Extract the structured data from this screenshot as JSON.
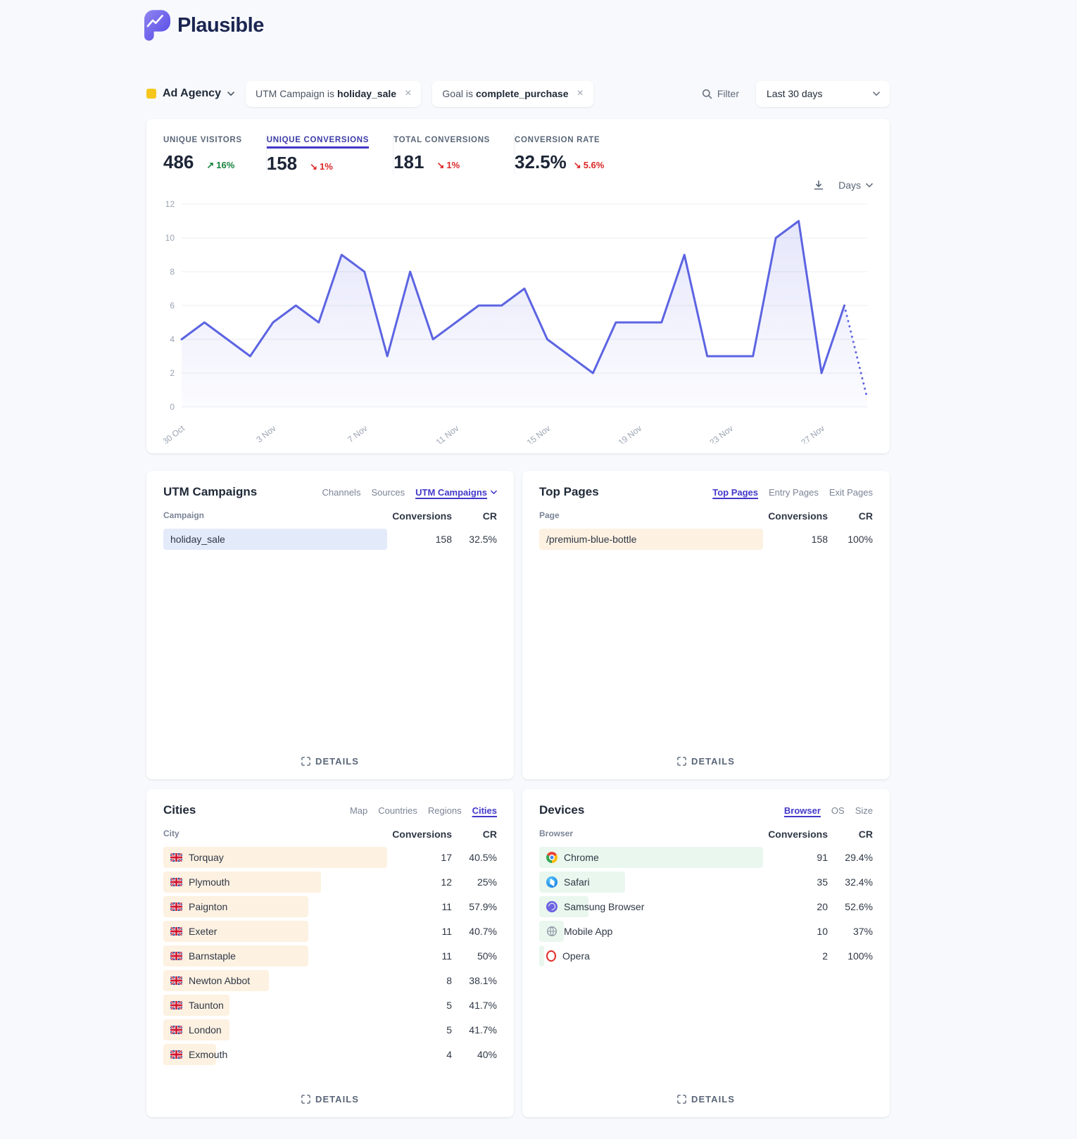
{
  "brand": {
    "name": "Plausible"
  },
  "filter_bar": {
    "site_name": "Ad Agency",
    "favicon_color": "#f6c61c",
    "filters": [
      {
        "prefix": "UTM Campaign is",
        "value": "holiday_sale",
        "close": "×"
      },
      {
        "prefix": "Goal is",
        "value": "complete_purchase",
        "close": "×"
      }
    ],
    "filter_label": "Filter",
    "date_range": "Last 30 days"
  },
  "stats": [
    {
      "label": "UNIQUE VISITORS",
      "value": "486",
      "arrow": "↗",
      "change": "16%",
      "direction": "up",
      "active": false
    },
    {
      "label": "UNIQUE CONVERSIONS",
      "value": "158",
      "arrow": "↘",
      "change": "1%",
      "direction": "down",
      "active": true
    },
    {
      "label": "TOTAL CONVERSIONS",
      "value": "181",
      "arrow": "↘",
      "change": "1%",
      "direction": "down",
      "active": false
    },
    {
      "label": "CONVERSION RATE",
      "value": "32.5%",
      "arrow": "↘",
      "change": "5.6%",
      "direction": "down",
      "active": false
    }
  ],
  "chart_controls": {
    "interval": "Days"
  },
  "chart_data": {
    "type": "line",
    "title": "Unique conversions per day (Last 30 days)",
    "x": [
      "30 Oct",
      "31 Oct",
      "1 Nov",
      "2 Nov",
      "3 Nov",
      "4 Nov",
      "5 Nov",
      "6 Nov",
      "7 Nov",
      "8 Nov",
      "9 Nov",
      "10 Nov",
      "11 Nov",
      "12 Nov",
      "13 Nov",
      "14 Nov",
      "15 Nov",
      "16 Nov",
      "17 Nov",
      "18 Nov",
      "19 Nov",
      "20 Nov",
      "21 Nov",
      "22 Nov",
      "23 Nov",
      "24 Nov",
      "25 Nov",
      "26 Nov",
      "27 Nov",
      "28 Nov",
      "29 Nov"
    ],
    "values": [
      4,
      5,
      4,
      3,
      5,
      6,
      5,
      9,
      8,
      3,
      8,
      4,
      5,
      6,
      6,
      7,
      4,
      3,
      2,
      5,
      5,
      5,
      9,
      3,
      3,
      3,
      10,
      11,
      2,
      6,
      0.5
    ],
    "dotted_from_index": 29,
    "ylim": [
      0,
      12
    ],
    "yticks": [
      0,
      2,
      4,
      6,
      8,
      10,
      12
    ],
    "xtick_indices": [
      0,
      4,
      8,
      12,
      16,
      20,
      24,
      28
    ],
    "xtick_labels": [
      "30 Oct",
      "3 Nov",
      "7 Nov",
      "11 Nov",
      "15 Nov",
      "19 Nov",
      "23 Nov",
      "27 Nov"
    ],
    "line_color": "#5c64e2",
    "grid": true,
    "legend": false
  },
  "panels": {
    "utm": {
      "title": "UTM Campaigns",
      "tabs": [
        "Channels",
        "Sources",
        "UTM Campaigns"
      ],
      "active_tab": "UTM Campaigns",
      "columns": [
        "Campaign",
        "Conversions",
        "CR"
      ],
      "rows": [
        {
          "name": "holiday_sale",
          "conversions": 158,
          "cr": "32.5%"
        }
      ],
      "details_label": "DETAILS"
    },
    "pages": {
      "title": "Top Pages",
      "tabs": [
        "Top Pages",
        "Entry Pages",
        "Exit Pages"
      ],
      "active_tab": "Top Pages",
      "columns": [
        "Page",
        "Conversions",
        "CR"
      ],
      "rows": [
        {
          "name": "/premium-blue-bottle",
          "conversions": 158,
          "cr": "100%"
        }
      ],
      "details_label": "DETAILS"
    },
    "cities": {
      "title": "Cities",
      "tabs": [
        "Map",
        "Countries",
        "Regions",
        "Cities"
      ],
      "active_tab": "Cities",
      "columns": [
        "City",
        "Conversions",
        "CR"
      ],
      "rows": [
        {
          "name": "Torquay",
          "conversions": 17,
          "cr": "40.5%",
          "flag": "gb"
        },
        {
          "name": "Plymouth",
          "conversions": 12,
          "cr": "25%",
          "flag": "gb"
        },
        {
          "name": "Paignton",
          "conversions": 11,
          "cr": "57.9%",
          "flag": "gb"
        },
        {
          "name": "Exeter",
          "conversions": 11,
          "cr": "40.7%",
          "flag": "gb"
        },
        {
          "name": "Barnstaple",
          "conversions": 11,
          "cr": "50%",
          "flag": "gb"
        },
        {
          "name": "Newton Abbot",
          "conversions": 8,
          "cr": "38.1%",
          "flag": "gb"
        },
        {
          "name": "Taunton",
          "conversions": 5,
          "cr": "41.7%",
          "flag": "gb"
        },
        {
          "name": "London",
          "conversions": 5,
          "cr": "41.7%",
          "flag": "gb"
        },
        {
          "name": "Exmouth",
          "conversions": 4,
          "cr": "40%",
          "flag": "gb"
        }
      ],
      "details_label": "DETAILS"
    },
    "devices": {
      "title": "Devices",
      "tabs": [
        "Browser",
        "OS",
        "Size"
      ],
      "active_tab": "Browser",
      "columns": [
        "Browser",
        "Conversions",
        "CR"
      ],
      "rows": [
        {
          "name": "Chrome",
          "conversions": 91,
          "cr": "29.4%",
          "icon": "chrome"
        },
        {
          "name": "Safari",
          "conversions": 35,
          "cr": "32.4%",
          "icon": "safari"
        },
        {
          "name": "Samsung Browser",
          "conversions": 20,
          "cr": "52.6%",
          "icon": "samsung"
        },
        {
          "name": "Mobile App",
          "conversions": 10,
          "cr": "37%",
          "icon": "globe"
        },
        {
          "name": "Opera",
          "conversions": 2,
          "cr": "100%",
          "icon": "opera"
        }
      ],
      "details_label": "DETAILS"
    }
  },
  "colors": {
    "accent": "#5c64e2",
    "active_link": "#4338ca",
    "up_green": "#15803d",
    "down_red": "#dc2626",
    "bar_blue": "#e3eafa",
    "bar_cream": "#fdf1e1",
    "bar_green": "#e9f7ee"
  }
}
